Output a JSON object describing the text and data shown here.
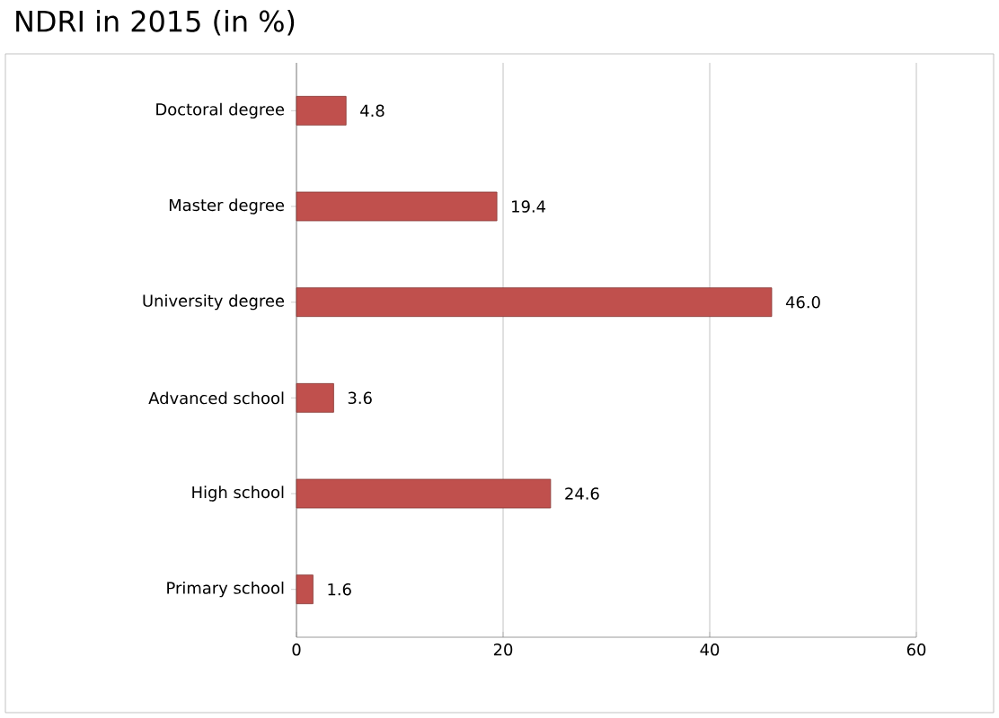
{
  "chart_data": {
    "type": "bar",
    "orientation": "horizontal",
    "title": "NDRI in 2015 (in %)",
    "categories": [
      "Doctoral degree",
      "Master degree",
      "University degree",
      "Advanced school",
      "High school",
      "Primary school"
    ],
    "values": [
      4.8,
      19.4,
      46.0,
      3.6,
      24.6,
      1.6
    ],
    "value_labels": [
      "4.8",
      "19.4",
      "46.0",
      "3.6",
      "24.6",
      "1.6"
    ],
    "color": "#c0504d",
    "xlim": [
      0,
      60
    ],
    "xticks": [
      0,
      20,
      40,
      60
    ],
    "grid": "x"
  }
}
